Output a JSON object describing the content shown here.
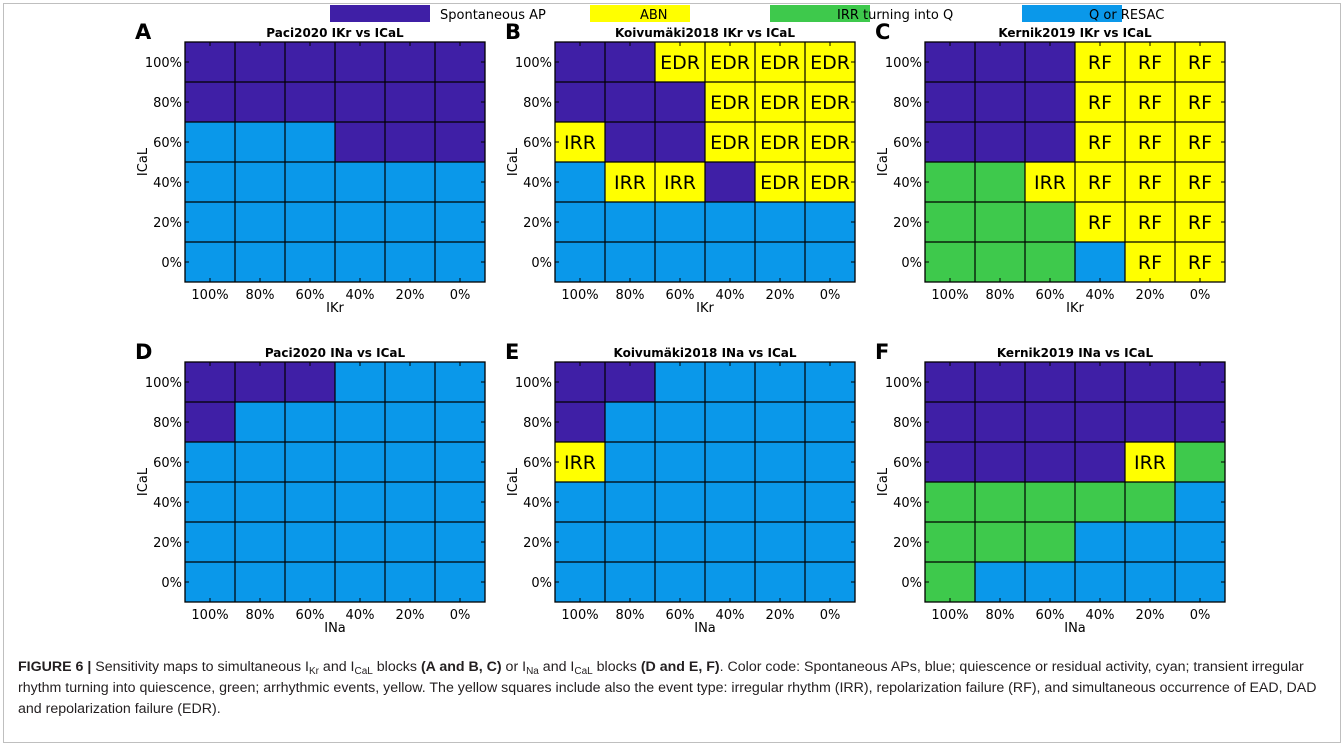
{
  "legend": [
    {
      "label": "Spontaneous AP",
      "color": "#3f1fa6"
    },
    {
      "label": "ABN",
      "color": "#ffff00"
    },
    {
      "label": "IRR turning into Q",
      "color": "#3ec94c"
    },
    {
      "label": "Q or RESAC",
      "color": "#0a98ea"
    }
  ],
  "category_colors": {
    "S": "#3f1fa6",
    "Y": "#ffff00",
    "G": "#3ec94c",
    "Q": "#0a98ea"
  },
  "caption": {
    "label": "FIGURE 6 |",
    "text_a": " Sensitivity maps to simultaneous I",
    "sub_kr": "Kr",
    "text_b": " and I",
    "sub_cal_1": "CaL",
    "text_c": " blocks ",
    "bold_abc": "(A and B, C)",
    "text_d": " or I",
    "sub_na": "Na",
    "text_e": " and I",
    "sub_cal_2": "CaL",
    "text_f": " blocks ",
    "bold_def": "(D and E, F)",
    "text_g": ". Color code: Spontaneous APs, blue; quiescence or residual activity, cyan; transient irregular rhythm turning into quiescence, green; arrhythmic events, yellow. The yellow squares include also the event type: irregular rhythm (IRR), repolarization failure (RF), and simultaneous occurrence of EAD, DAD and repolarization failure (EDR)."
  },
  "chart_data": [
    {
      "type": "heatmap",
      "panel": "A",
      "title": "Paci2020 IKr vs ICaL",
      "xlabel": "IKr",
      "ylabel": "ICaL",
      "x": [
        "100%",
        "80%",
        "60%",
        "40%",
        "20%",
        "0%"
      ],
      "y": [
        "100%",
        "80%",
        "60%",
        "40%",
        "20%",
        "0%"
      ],
      "cells": [
        [
          "S",
          "S",
          "S",
          "S",
          "S",
          "S"
        ],
        [
          "S",
          "S",
          "S",
          "S",
          "S",
          "S"
        ],
        [
          "Q",
          "Q",
          "Q",
          "S",
          "S",
          "S"
        ],
        [
          "Q",
          "Q",
          "Q",
          "Q",
          "Q",
          "Q"
        ],
        [
          "Q",
          "Q",
          "Q",
          "Q",
          "Q",
          "Q"
        ],
        [
          "Q",
          "Q",
          "Q",
          "Q",
          "Q",
          "Q"
        ]
      ],
      "labels": [
        [
          "",
          "",
          "",
          "",
          "",
          ""
        ],
        [
          "",
          "",
          "",
          "",
          "",
          ""
        ],
        [
          "",
          "",
          "",
          "",
          "",
          ""
        ],
        [
          "",
          "",
          "",
          "",
          "",
          ""
        ],
        [
          "",
          "",
          "",
          "",
          "",
          ""
        ],
        [
          "",
          "",
          "",
          "",
          "",
          ""
        ]
      ]
    },
    {
      "type": "heatmap",
      "panel": "B",
      "title": "Koivumäki2018 IKr vs ICaL",
      "xlabel": "IKr",
      "ylabel": "ICaL",
      "x": [
        "100%",
        "80%",
        "60%",
        "40%",
        "20%",
        "0%"
      ],
      "y": [
        "100%",
        "80%",
        "60%",
        "40%",
        "20%",
        "0%"
      ],
      "cells": [
        [
          "S",
          "S",
          "Y",
          "Y",
          "Y",
          "Y"
        ],
        [
          "S",
          "S",
          "S",
          "Y",
          "Y",
          "Y"
        ],
        [
          "Y",
          "S",
          "S",
          "Y",
          "Y",
          "Y"
        ],
        [
          "Q",
          "Y",
          "Y",
          "S",
          "Y",
          "Y"
        ],
        [
          "Q",
          "Q",
          "Q",
          "Q",
          "Q",
          "Q"
        ],
        [
          "Q",
          "Q",
          "Q",
          "Q",
          "Q",
          "Q"
        ]
      ],
      "labels": [
        [
          "",
          "",
          "EDR",
          "EDR",
          "EDR",
          "EDR"
        ],
        [
          "",
          "",
          "",
          "EDR",
          "EDR",
          "EDR"
        ],
        [
          "IRR",
          "",
          "",
          "EDR",
          "EDR",
          "EDR"
        ],
        [
          "",
          "IRR",
          "IRR",
          "",
          "EDR",
          "EDR"
        ],
        [
          "",
          "",
          "",
          "",
          "",
          ""
        ],
        [
          "",
          "",
          "",
          "",
          "",
          ""
        ]
      ]
    },
    {
      "type": "heatmap",
      "panel": "C",
      "title": "Kernik2019 IKr vs ICaL",
      "xlabel": "IKr",
      "ylabel": "ICaL",
      "x": [
        "100%",
        "80%",
        "60%",
        "40%",
        "20%",
        "0%"
      ],
      "y": [
        "100%",
        "80%",
        "60%",
        "40%",
        "20%",
        "0%"
      ],
      "cells": [
        [
          "S",
          "S",
          "S",
          "Y",
          "Y",
          "Y"
        ],
        [
          "S",
          "S",
          "S",
          "Y",
          "Y",
          "Y"
        ],
        [
          "S",
          "S",
          "S",
          "Y",
          "Y",
          "Y"
        ],
        [
          "G",
          "G",
          "Y",
          "Y",
          "Y",
          "Y"
        ],
        [
          "G",
          "G",
          "G",
          "Y",
          "Y",
          "Y"
        ],
        [
          "G",
          "G",
          "G",
          "Q",
          "Y",
          "Y"
        ]
      ],
      "labels": [
        [
          "",
          "",
          "",
          "RF",
          "RF",
          "RF"
        ],
        [
          "",
          "",
          "",
          "RF",
          "RF",
          "RF"
        ],
        [
          "",
          "",
          "",
          "RF",
          "RF",
          "RF"
        ],
        [
          "",
          "",
          "IRR",
          "RF",
          "RF",
          "RF"
        ],
        [
          "",
          "",
          "",
          "RF",
          "RF",
          "RF"
        ],
        [
          "",
          "",
          "",
          "",
          "RF",
          "RF"
        ]
      ]
    },
    {
      "type": "heatmap",
      "panel": "D",
      "title": "Paci2020 INa vs ICaL",
      "xlabel": "INa",
      "ylabel": "ICaL",
      "x": [
        "100%",
        "80%",
        "60%",
        "40%",
        "20%",
        "0%"
      ],
      "y": [
        "100%",
        "80%",
        "60%",
        "40%",
        "20%",
        "0%"
      ],
      "cells": [
        [
          "S",
          "S",
          "S",
          "Q",
          "Q",
          "Q"
        ],
        [
          "S",
          "Q",
          "Q",
          "Q",
          "Q",
          "Q"
        ],
        [
          "Q",
          "Q",
          "Q",
          "Q",
          "Q",
          "Q"
        ],
        [
          "Q",
          "Q",
          "Q",
          "Q",
          "Q",
          "Q"
        ],
        [
          "Q",
          "Q",
          "Q",
          "Q",
          "Q",
          "Q"
        ],
        [
          "Q",
          "Q",
          "Q",
          "Q",
          "Q",
          "Q"
        ]
      ],
      "labels": [
        [
          "",
          "",
          "",
          "",
          "",
          ""
        ],
        [
          "",
          "",
          "",
          "",
          "",
          ""
        ],
        [
          "",
          "",
          "",
          "",
          "",
          ""
        ],
        [
          "",
          "",
          "",
          "",
          "",
          ""
        ],
        [
          "",
          "",
          "",
          "",
          "",
          ""
        ],
        [
          "",
          "",
          "",
          "",
          "",
          ""
        ]
      ]
    },
    {
      "type": "heatmap",
      "panel": "E",
      "title": "Koivumäki2018 INa vs ICaL",
      "xlabel": "INa",
      "ylabel": "ICaL",
      "x": [
        "100%",
        "80%",
        "60%",
        "40%",
        "20%",
        "0%"
      ],
      "y": [
        "100%",
        "80%",
        "60%",
        "40%",
        "20%",
        "0%"
      ],
      "cells": [
        [
          "S",
          "S",
          "Q",
          "Q",
          "Q",
          "Q"
        ],
        [
          "S",
          "Q",
          "Q",
          "Q",
          "Q",
          "Q"
        ],
        [
          "Y",
          "Q",
          "Q",
          "Q",
          "Q",
          "Q"
        ],
        [
          "Q",
          "Q",
          "Q",
          "Q",
          "Q",
          "Q"
        ],
        [
          "Q",
          "Q",
          "Q",
          "Q",
          "Q",
          "Q"
        ],
        [
          "Q",
          "Q",
          "Q",
          "Q",
          "Q",
          "Q"
        ]
      ],
      "labels": [
        [
          "",
          "",
          "",
          "",
          "",
          ""
        ],
        [
          "",
          "",
          "",
          "",
          "",
          ""
        ],
        [
          "IRR",
          "",
          "",
          "",
          "",
          ""
        ],
        [
          "",
          "",
          "",
          "",
          "",
          ""
        ],
        [
          "",
          "",
          "",
          "",
          "",
          ""
        ],
        [
          "",
          "",
          "",
          "",
          "",
          ""
        ]
      ]
    },
    {
      "type": "heatmap",
      "panel": "F",
      "title": "Kernik2019 INa vs ICaL",
      "xlabel": "INa",
      "ylabel": "ICaL",
      "x": [
        "100%",
        "80%",
        "60%",
        "40%",
        "20%",
        "0%"
      ],
      "y": [
        "100%",
        "80%",
        "60%",
        "40%",
        "20%",
        "0%"
      ],
      "cells": [
        [
          "S",
          "S",
          "S",
          "S",
          "S",
          "S"
        ],
        [
          "S",
          "S",
          "S",
          "S",
          "S",
          "S"
        ],
        [
          "S",
          "S",
          "S",
          "S",
          "Y",
          "G"
        ],
        [
          "G",
          "G",
          "G",
          "G",
          "G",
          "Q"
        ],
        [
          "G",
          "G",
          "G",
          "Q",
          "Q",
          "Q"
        ],
        [
          "G",
          "Q",
          "Q",
          "Q",
          "Q",
          "Q"
        ]
      ],
      "labels": [
        [
          "",
          "",
          "",
          "",
          "",
          ""
        ],
        [
          "",
          "",
          "",
          "",
          "",
          ""
        ],
        [
          "",
          "",
          "",
          "",
          "IRR",
          ""
        ],
        [
          "",
          "",
          "",
          "",
          "",
          ""
        ],
        [
          "",
          "",
          "",
          "",
          "",
          ""
        ],
        [
          "",
          "",
          "",
          "",
          "",
          ""
        ]
      ]
    }
  ]
}
